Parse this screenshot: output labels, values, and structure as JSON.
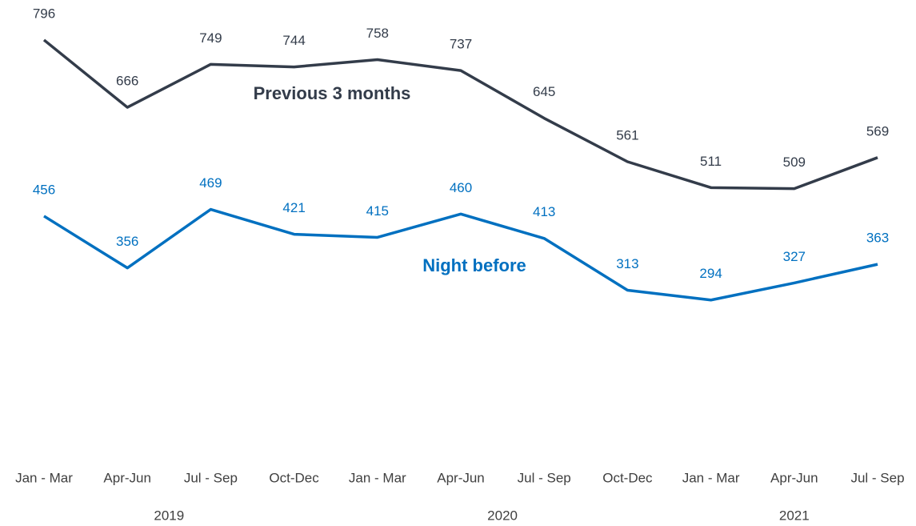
{
  "chart_data": {
    "type": "line",
    "category_groups": [
      {
        "name": "2019",
        "categories": [
          "Jan - Mar",
          "Apr-Jun",
          "Jul - Sep",
          "Oct-Dec"
        ]
      },
      {
        "name": "2020",
        "categories": [
          "Jan - Mar",
          "Apr-Jun",
          "Jul - Sep",
          "Oct-Dec"
        ]
      },
      {
        "name": "2021",
        "categories": [
          "Jan - Mar",
          "Apr-Jun",
          "Jul - Sep"
        ]
      }
    ],
    "series": [
      {
        "name": "Previous 3 months",
        "color": "#333c4a",
        "values": [
          796,
          666,
          749,
          744,
          758,
          737,
          645,
          561,
          511,
          509,
          569
        ]
      },
      {
        "name": "Night before",
        "color": "#0070c0",
        "values": [
          456,
          356,
          469,
          421,
          415,
          460,
          413,
          313,
          294,
          327,
          363
        ]
      }
    ],
    "ylim": [
      0,
      850
    ]
  }
}
